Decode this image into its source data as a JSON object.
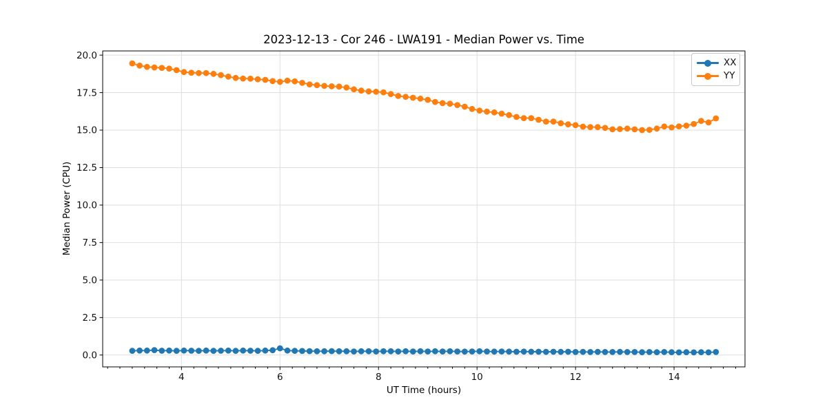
{
  "chart_data": {
    "type": "line",
    "title": "2023-12-13 - Cor 246 - LWA191 - Median Power vs. Time",
    "xlabel": "UT Time (hours)",
    "ylabel": "Median Power (CPU)",
    "xlim": [
      2.4,
      15.44
    ],
    "ylim": [
      -0.79,
      20.28
    ],
    "xticks": [
      4,
      6,
      8,
      10,
      12,
      14
    ],
    "xtick_labels": [
      "4",
      "6",
      "8",
      "10",
      "12",
      "14"
    ],
    "minor_xtick_step": 0.25,
    "yticks": [
      0,
      2.5,
      5,
      7.5,
      10,
      12.5,
      15,
      17.5,
      20
    ],
    "ytick_labels": [
      "0.0",
      "2.5",
      "5.0",
      "7.5",
      "10.0",
      "12.5",
      "15.0",
      "17.5",
      "20.0"
    ],
    "grid": true,
    "grid_color": "#dedede",
    "spine_color": "#000000",
    "background": "#ffffff",
    "legend_position": "upper right",
    "marker": "circle",
    "marker_size": 4.4,
    "line_width": 1.9,
    "x": [
      3.0,
      3.15,
      3.3,
      3.45,
      3.6,
      3.75,
      3.9,
      4.05,
      4.2,
      4.35,
      4.5,
      4.65,
      4.8,
      4.95,
      5.1,
      5.25,
      5.4,
      5.55,
      5.7,
      5.85,
      6.0,
      6.15,
      6.3,
      6.45,
      6.6,
      6.75,
      6.9,
      7.05,
      7.2,
      7.35,
      7.5,
      7.65,
      7.8,
      7.95,
      8.1,
      8.25,
      8.4,
      8.55,
      8.7,
      8.85,
      9.0,
      9.15,
      9.3,
      9.45,
      9.6,
      9.75,
      9.9,
      10.05,
      10.2,
      10.35,
      10.5,
      10.65,
      10.8,
      10.95,
      11.1,
      11.25,
      11.4,
      11.55,
      11.7,
      11.85,
      12.0,
      12.15,
      12.3,
      12.45,
      12.6,
      12.75,
      12.9,
      13.05,
      13.2,
      13.35,
      13.5,
      13.65,
      13.8,
      13.95,
      14.1,
      14.25,
      14.4,
      14.55,
      14.7,
      14.85
    ],
    "series": [
      {
        "name": "XX",
        "color": "#1f77b4",
        "values": [
          0.28,
          0.3,
          0.3,
          0.33,
          0.29,
          0.3,
          0.28,
          0.3,
          0.29,
          0.28,
          0.3,
          0.28,
          0.29,
          0.3,
          0.28,
          0.3,
          0.29,
          0.28,
          0.3,
          0.32,
          0.45,
          0.3,
          0.28,
          0.27,
          0.26,
          0.25,
          0.25,
          0.26,
          0.25,
          0.25,
          0.24,
          0.25,
          0.25,
          0.24,
          0.25,
          0.25,
          0.24,
          0.25,
          0.24,
          0.25,
          0.24,
          0.25,
          0.24,
          0.25,
          0.24,
          0.23,
          0.24,
          0.25,
          0.24,
          0.23,
          0.24,
          0.23,
          0.22,
          0.23,
          0.22,
          0.22,
          0.21,
          0.22,
          0.21,
          0.22,
          0.2,
          0.21,
          0.2,
          0.21,
          0.2,
          0.2,
          0.21,
          0.2,
          0.2,
          0.19,
          0.2,
          0.19,
          0.2,
          0.19,
          0.18,
          0.19,
          0.18,
          0.19,
          0.18,
          0.2
        ]
      },
      {
        "name": "YY",
        "color": "#ff7f0e",
        "values": [
          19.45,
          19.3,
          19.22,
          19.18,
          19.15,
          19.1,
          19.0,
          18.87,
          18.83,
          18.8,
          18.8,
          18.75,
          18.67,
          18.57,
          18.48,
          18.44,
          18.43,
          18.39,
          18.35,
          18.27,
          18.22,
          18.3,
          18.25,
          18.15,
          18.05,
          18.0,
          17.95,
          17.92,
          17.9,
          17.84,
          17.72,
          17.63,
          17.58,
          17.56,
          17.52,
          17.4,
          17.28,
          17.22,
          17.16,
          17.1,
          17.02,
          16.88,
          16.8,
          16.76,
          16.67,
          16.56,
          16.41,
          16.3,
          16.23,
          16.18,
          16.1,
          16.0,
          15.88,
          15.8,
          15.8,
          15.69,
          15.57,
          15.57,
          15.46,
          15.38,
          15.33,
          15.23,
          15.2,
          15.2,
          15.15,
          15.05,
          15.07,
          15.1,
          15.05,
          15.0,
          15.02,
          15.1,
          15.24,
          15.18,
          15.25,
          15.3,
          15.41,
          15.61,
          15.51,
          15.78
        ]
      }
    ]
  }
}
